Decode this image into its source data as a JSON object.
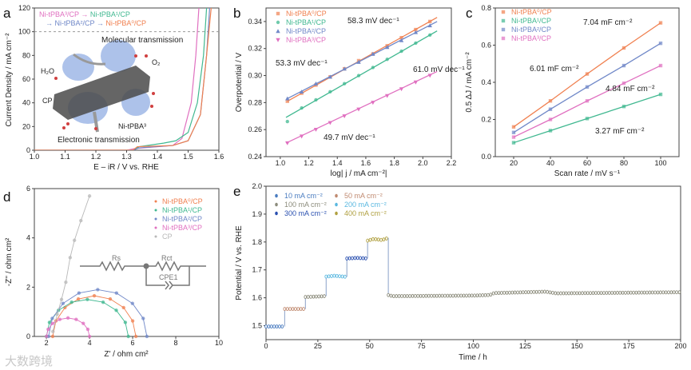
{
  "watermark": "大数跨境",
  "chart_data": [
    {
      "id": "a",
      "panel_label": "a",
      "type": "line",
      "xlabel": "E – iR / V vs. RHE",
      "ylabel": "Current Density / mA cm⁻²",
      "xlim": [
        1.0,
        1.6
      ],
      "ylim": [
        0,
        120
      ],
      "xticks": [
        "1.0",
        "1.1",
        "1.2",
        "1.3",
        "1.4",
        "1.5",
        "1.6"
      ],
      "yticks": [
        "0",
        "20",
        "40",
        "60",
        "80",
        "100",
        "120"
      ],
      "reference_line_y": 100,
      "order_text": [
        "Ni-tPBA³/CP → ",
        "Ni-tPBA¹/CP",
        "→ Ni-tPBA²/CP → ",
        "Ni-tPBA⁰/CP"
      ],
      "annotations": {
        "molecular": "Molecular transmission",
        "electronic": "Electronic transmission",
        "h2o": "H₂O",
        "o2": "O₂",
        "cp": "CP",
        "ni": "Ni-tPBA³"
      },
      "series": [
        {
          "name": "Ni-tPBA³/CP",
          "color": "#e070c0",
          "x": [
            1.0,
            1.3,
            1.33,
            1.45,
            1.48,
            1.51,
            1.525,
            1.535
          ],
          "y": [
            0,
            0,
            1.5,
            4,
            10,
            40,
            80,
            120
          ]
        },
        {
          "name": "Ni-tPBA¹/CP",
          "color": "#40b890",
          "x": [
            1.0,
            1.32,
            1.34,
            1.42,
            1.46,
            1.5,
            1.53,
            1.55,
            1.56
          ],
          "y": [
            0,
            0,
            3,
            6,
            8,
            15,
            40,
            80,
            120
          ]
        },
        {
          "name": "Ni-tPBA²/CP",
          "color": "#7088c8",
          "x": [
            1.0,
            1.32,
            1.34,
            1.45,
            1.5,
            1.54,
            1.56,
            1.57
          ],
          "y": [
            0,
            0,
            2,
            4,
            8,
            30,
            80,
            120
          ]
        },
        {
          "name": "Ni-tPBA⁰/CP",
          "color": "#f08050",
          "x": [
            1.0,
            1.32,
            1.335,
            1.45,
            1.5,
            1.54,
            1.56,
            1.575
          ],
          "y": [
            0,
            0,
            3,
            4,
            8,
            30,
            80,
            120
          ]
        }
      ]
    },
    {
      "id": "b",
      "panel_label": "b",
      "type": "scatter",
      "xlabel": "log| j / mA cm⁻²|",
      "ylabel": "Overpotential / V",
      "xlim": [
        0.9,
        2.2
      ],
      "ylim": [
        0.24,
        0.35
      ],
      "xticks": [
        "1.0",
        "1.2",
        "1.4",
        "1.6",
        "1.8",
        "2.0",
        "2.2"
      ],
      "yticks": [
        "0.24",
        "0.26",
        "0.28",
        "0.30",
        "0.32",
        "0.34"
      ],
      "legend_position": "top-left",
      "x": [
        1.05,
        1.15,
        1.25,
        1.35,
        1.45,
        1.55,
        1.65,
        1.75,
        1.85,
        1.95,
        2.05
      ],
      "series": [
        {
          "name": "Ni-tPBA⁰/CP",
          "color": "#f08050",
          "marker": "square",
          "tafel": "58.3 mV dec⁻¹",
          "y": [
            0.281,
            0.287,
            0.293,
            0.299,
            0.305,
            0.311,
            0.316,
            0.322,
            0.328,
            0.334,
            0.34
          ],
          "fit": [
            [
              1.05,
              0.281
            ],
            [
              2.1,
              0.343
            ]
          ]
        },
        {
          "name": "Ni-tPBA¹/CP",
          "color": "#40b890",
          "marker": "circle",
          "tafel": "61.0 mV dec⁻¹",
          "y": [
            0.266,
            0.276,
            0.282,
            0.288,
            0.294,
            0.3,
            0.306,
            0.312,
            0.318,
            0.324,
            0.33
          ],
          "fit": [
            [
              1.04,
              0.269
            ],
            [
              2.1,
              0.333
            ]
          ]
        },
        {
          "name": "Ni-tPBA²/CP",
          "color": "#7088c8",
          "marker": "triangle",
          "tafel": "53.3 mV dec⁻¹",
          "y": [
            0.283,
            0.288,
            0.294,
            0.299,
            0.305,
            0.31,
            0.316,
            0.321,
            0.326,
            0.332,
            0.337
          ],
          "fit": [
            [
              1.05,
              0.283
            ],
            [
              2.1,
              0.34
            ]
          ]
        },
        {
          "name": "Ni-tPBA³/CP",
          "color": "#e070c0",
          "marker": "triangle-down",
          "tafel": "49.7 mV dec⁻¹",
          "y": [
            0.25,
            0.255,
            0.26,
            0.265,
            0.27,
            0.275,
            0.28,
            0.285,
            0.29,
            0.295,
            0.3
          ],
          "fit": [
            [
              1.04,
              0.25
            ],
            [
              2.1,
              0.303
            ]
          ]
        }
      ]
    },
    {
      "id": "c",
      "panel_label": "c",
      "type": "line",
      "xlabel": "Scan rate / mV s⁻¹",
      "ylabel": "0.5 ΔJ / mA cm⁻²",
      "xlim": [
        10,
        110
      ],
      "ylim": [
        0,
        0.8
      ],
      "xticks": [
        "20",
        "40",
        "60",
        "80",
        "100"
      ],
      "yticks": [
        "0.0",
        "0.2",
        "0.4",
        "0.6",
        "0.8"
      ],
      "legend_position": "top-left",
      "x": [
        20,
        40,
        60,
        80,
        100
      ],
      "series": [
        {
          "name": "Ni-tPBA⁰/CP",
          "color": "#f08050",
          "cdl": "7.04 mF cm⁻²",
          "y": [
            0.16,
            0.3,
            0.445,
            0.585,
            0.72
          ]
        },
        {
          "name": "Ni-tPBA¹/CP",
          "color": "#40b890",
          "cdl": "3.27 mF cm⁻²",
          "y": [
            0.075,
            0.14,
            0.205,
            0.27,
            0.335
          ]
        },
        {
          "name": "Ni-tPBA²/CP",
          "color": "#7088c8",
          "cdl": "6.01 mF cm⁻²",
          "y": [
            0.13,
            0.255,
            0.375,
            0.49,
            0.61
          ]
        },
        {
          "name": "Ni-tPBA³/CP",
          "color": "#e070c0",
          "cdl": "4.84 mF cm⁻²",
          "y": [
            0.105,
            0.2,
            0.3,
            0.395,
            0.49
          ]
        }
      ]
    },
    {
      "id": "d",
      "panel_label": "d",
      "type": "scatter",
      "xlabel": "Z' / ohm cm²",
      "ylabel": "-Z'' / ohm cm²",
      "xlim": [
        1.44,
        10
      ],
      "ylim": [
        0,
        6
      ],
      "xticks": [
        "2",
        "4",
        "6",
        "8",
        "10"
      ],
      "yticks": [
        "0",
        "2",
        "4",
        "6"
      ],
      "legend_position": "top-right",
      "circuit": {
        "rs": "Rs",
        "rct": "Rct",
        "cpe": "CPE1"
      },
      "series": [
        {
          "name": "Ni-tPBA⁰/CP",
          "color": "#f08050",
          "x": [
            2.29,
            2.44,
            2.86,
            3.48,
            4.22,
            4.96,
            5.58,
            6.0,
            6.15
          ],
          "y": [
            0,
            0.63,
            1.17,
            1.52,
            1.65,
            1.52,
            1.17,
            0.63,
            0
          ]
        },
        {
          "name": "Ni-tPBA¹/CP",
          "color": "#40b890",
          "x": [
            2.0,
            2.14,
            2.56,
            3.17,
            3.9,
            4.63,
            5.24,
            5.66,
            5.8
          ],
          "y": [
            0,
            0.57,
            1.06,
            1.39,
            1.5,
            1.39,
            1.06,
            0.57,
            0
          ]
        },
        {
          "name": "Ni-tPBA²/CP",
          "color": "#7088c8",
          "x": [
            2.1,
            2.27,
            2.77,
            3.51,
            4.38,
            5.25,
            5.99,
            6.49,
            6.66
          ],
          "y": [
            0,
            0.73,
            1.34,
            1.76,
            1.9,
            1.76,
            1.34,
            0.73,
            0
          ]
        },
        {
          "name": "Ni-tPBA³/CP",
          "color": "#e070c0",
          "x": [
            2.0,
            2.08,
            2.29,
            2.62,
            3.0,
            3.38,
            3.71,
            3.92,
            4.0
          ],
          "y": [
            0,
            0.29,
            0.53,
            0.69,
            0.75,
            0.69,
            0.53,
            0.29,
            0
          ]
        },
        {
          "name": "CP",
          "color": "#b8b8b8",
          "x": [
            2.3,
            2.5,
            2.7,
            2.9,
            3.1,
            3.3,
            3.6,
            4.0
          ],
          "y": [
            0.2,
            0.9,
            1.5,
            2.2,
            3.2,
            3.9,
            4.7,
            5.7
          ]
        }
      ]
    },
    {
      "id": "e",
      "panel_label": "e",
      "type": "line",
      "xlabel": "Time / h",
      "ylabel": "Potential / V vs. RHE",
      "xlim": [
        0,
        200
      ],
      "ylim": [
        1.45,
        2.0
      ],
      "xticks": [
        "0",
        "25",
        "50",
        "75",
        "100",
        "125",
        "150",
        "175",
        "200"
      ],
      "yticks": [
        "1.5",
        "1.6",
        "1.7",
        "1.8",
        "1.9",
        "2.0"
      ],
      "legend_position": "top-left",
      "series": [
        {
          "name": "10 mA cm⁻²",
          "color": "#4a7cc0",
          "points": [
            [
              0,
              1.497
            ],
            [
              9,
              1.497
            ]
          ]
        },
        {
          "name": "50 mA cm⁻²",
          "color": "#c08a70",
          "points": [
            [
              9,
              1.56
            ],
            [
              19,
              1.56
            ]
          ]
        },
        {
          "name": "100 mA cm⁻²",
          "color": "#8c8c7c",
          "points": [
            [
              19,
              1.603
            ],
            [
              29,
              1.606
            ]
          ]
        },
        {
          "name": "200 mA cm⁻²",
          "color": "#5ab8e0",
          "points": [
            [
              29,
              1.676
            ],
            [
              33,
              1.679
            ],
            [
              39,
              1.675
            ]
          ]
        },
        {
          "name": "300 mA cm⁻²",
          "color": "#2a50b0",
          "points": [
            [
              39,
              1.741
            ],
            [
              44,
              1.743
            ],
            [
              49,
              1.741
            ]
          ]
        },
        {
          "name": "400 mA cm⁻²",
          "color": "#b0a040",
          "points": [
            [
              49,
              1.805
            ],
            [
              52,
              1.811
            ],
            [
              56,
              1.807
            ],
            [
              59,
              1.815
            ]
          ]
        },
        {
          "name": "100 mA cm⁻²",
          "color": "#8c8c7c",
          "legend": false,
          "points": [
            [
              59,
              1.61
            ],
            [
              61,
              1.606
            ],
            [
              100,
              1.608
            ],
            [
              108,
              1.61
            ],
            [
              110,
              1.617
            ],
            [
              135,
              1.622
            ],
            [
              140,
              1.616
            ],
            [
              200,
              1.62
            ]
          ]
        }
      ]
    }
  ]
}
